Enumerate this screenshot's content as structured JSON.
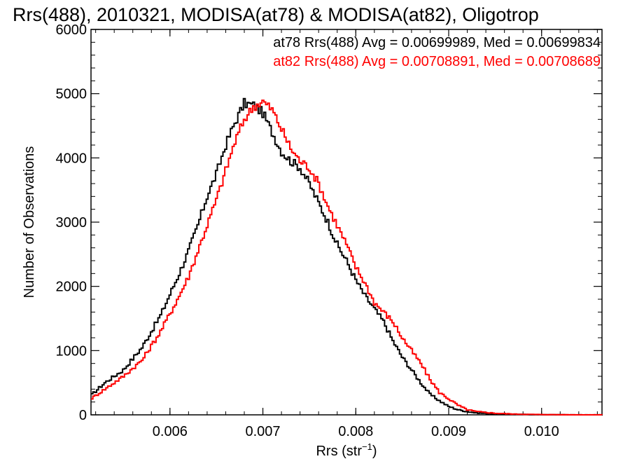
{
  "chart_data": {
    "type": "line",
    "title": "Rrs(488), 2010321, MODISA(at78) & MODISA(at82), Oligotrop",
    "xlabel": "Rrs (str",
    "xlabel_superscript": "−1",
    "xlabel_suffix": ")",
    "ylabel": "Number of Observations",
    "xlim": [
      0.00515,
      0.01065
    ],
    "ylim": [
      0,
      6000
    ],
    "grid": false,
    "legend_position": "top-right",
    "xticks": [
      {
        "value": 0.006,
        "label": "0.006"
      },
      {
        "value": 0.007,
        "label": "0.007"
      },
      {
        "value": 0.008,
        "label": "0.008"
      },
      {
        "value": 0.009,
        "label": "0.009"
      },
      {
        "value": 0.01,
        "label": "0.010"
      }
    ],
    "yticks": [
      {
        "value": 0,
        "label": "0"
      },
      {
        "value": 1000,
        "label": "1000"
      },
      {
        "value": 2000,
        "label": "2000"
      },
      {
        "value": 3000,
        "label": "3000"
      },
      {
        "value": 4000,
        "label": "4000"
      },
      {
        "value": 5000,
        "label": "5000"
      },
      {
        "value": 6000,
        "label": "6000"
      }
    ],
    "series": [
      {
        "name": "at78",
        "color": "#000000",
        "legend": "at78 Rrs(488) Avg = 0.00699989, Med = 0.00699834",
        "x": [
          0.00515,
          0.0053,
          0.0055,
          0.0057,
          0.0059,
          0.0061,
          0.0062,
          0.0063,
          0.0064,
          0.0065,
          0.0066,
          0.0067,
          0.0068,
          0.0069,
          0.007,
          0.0071,
          0.0072,
          0.0073,
          0.0074,
          0.0075,
          0.0076,
          0.0077,
          0.0078,
          0.0079,
          0.008,
          0.0081,
          0.0082,
          0.0083,
          0.0084,
          0.0085,
          0.0086,
          0.0087,
          0.0088,
          0.0089,
          0.009,
          0.0091,
          0.0092,
          0.0093,
          0.0095,
          0.0097,
          0.0099,
          0.0101,
          0.0103,
          0.01065
        ],
        "y": [
          300,
          500,
          700,
          1050,
          1550,
          2200,
          2550,
          2950,
          3400,
          3750,
          4200,
          4550,
          4850,
          4820,
          4700,
          4400,
          4100,
          3950,
          3850,
          3600,
          3300,
          3000,
          2650,
          2400,
          2100,
          1850,
          1650,
          1450,
          1150,
          900,
          700,
          500,
          320,
          220,
          130,
          80,
          50,
          30,
          15,
          8,
          4,
          2,
          1,
          0
        ]
      },
      {
        "name": "at82",
        "color": "#ff0000",
        "legend": "at82 Rrs(488) Avg = 0.00708891, Med = 0.00708689",
        "x": [
          0.00515,
          0.0053,
          0.0055,
          0.0057,
          0.0059,
          0.0061,
          0.0062,
          0.0063,
          0.0064,
          0.0065,
          0.0066,
          0.0067,
          0.0068,
          0.0069,
          0.007,
          0.0071,
          0.0072,
          0.0073,
          0.0074,
          0.0075,
          0.0076,
          0.0077,
          0.0078,
          0.0079,
          0.008,
          0.0081,
          0.0082,
          0.0083,
          0.0084,
          0.0085,
          0.0086,
          0.0087,
          0.0088,
          0.0089,
          0.009,
          0.0091,
          0.0092,
          0.0093,
          0.0095,
          0.0097,
          0.0099,
          0.0101,
          0.0103,
          0.01065
        ],
        "y": [
          250,
          400,
          600,
          850,
          1300,
          1850,
          2150,
          2550,
          2950,
          3350,
          3800,
          4250,
          4600,
          4800,
          4880,
          4750,
          4450,
          4150,
          3950,
          3850,
          3600,
          3250,
          2950,
          2650,
          2300,
          2050,
          1750,
          1600,
          1450,
          1200,
          1000,
          800,
          550,
          350,
          250,
          150,
          80,
          50,
          25,
          12,
          6,
          3,
          1,
          0
        ]
      }
    ]
  }
}
